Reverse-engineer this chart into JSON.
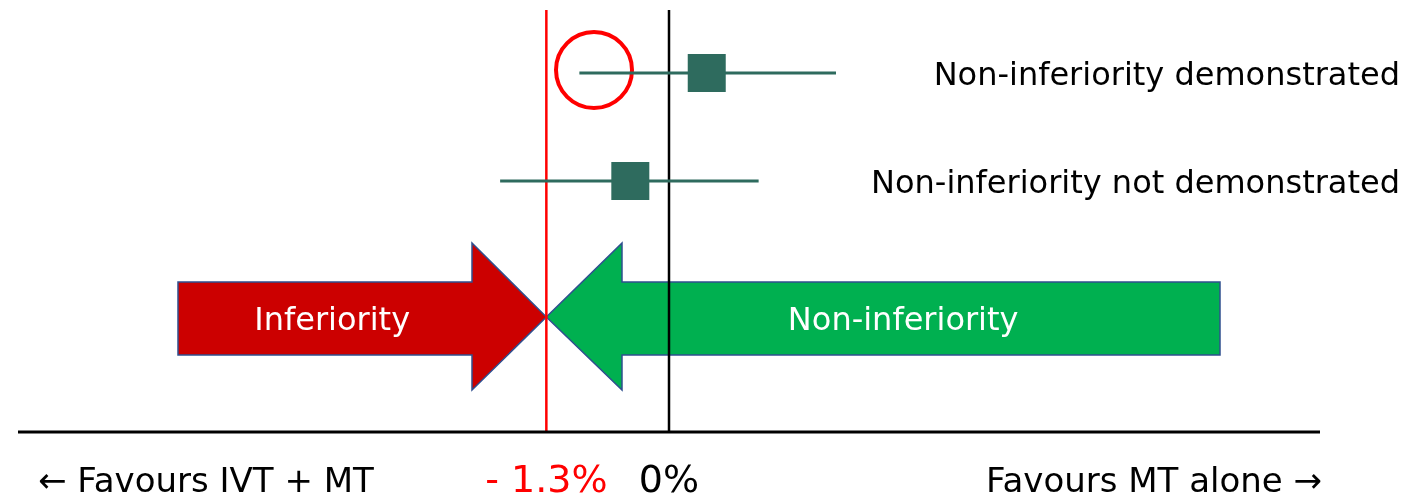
{
  "chart_data": {
    "type": "scatter",
    "orientation": "horizontal",
    "marker": "square",
    "tick_labels": "x",
    "categories": [
      "Non-inferiority demonstrated",
      "Non-inferiority not demonstrated"
    ],
    "series": [
      {
        "color": "#2e6b5e",
        "values": [
          0.4,
          -0.41
        ],
        "errors": [
          [
            -0.95,
            1.77
          ],
          [
            -1.79,
            0.95
          ]
        ]
      }
    ],
    "xlim": [
      -6.9,
      6.9
    ],
    "xticks": [
      {
        "value": -1.3,
        "label": "- 1.3%"
      },
      {
        "value": 0,
        "label": "0%"
      }
    ],
    "ref_lines": [
      {
        "axis": "x",
        "value": -1.3,
        "color": "#ff0000"
      },
      {
        "axis": "x",
        "value": 0,
        "color": "#000000"
      }
    ],
    "annotations": [
      "Inferiority",
      "Non-inferiority",
      "← Favours IVT + MT",
      "Favours MT alone →"
    ]
  }
}
